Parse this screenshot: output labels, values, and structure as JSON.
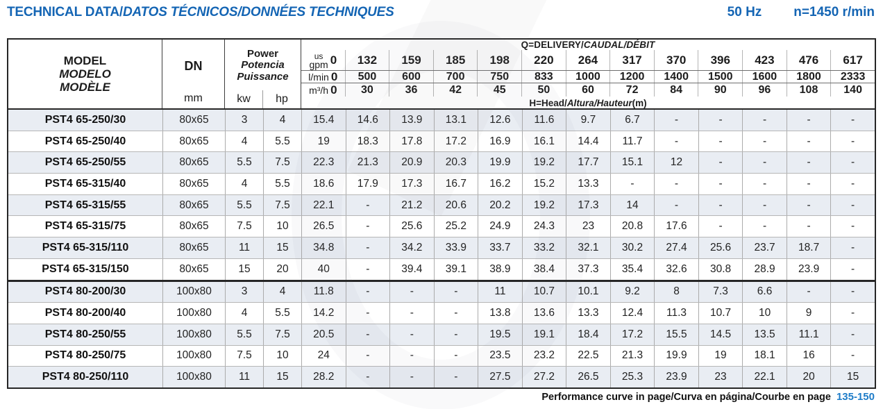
{
  "colors": {
    "accent_blue": "#1465b4",
    "pages_blue": "#1e7cc8",
    "row_shade": "#e9edf3"
  },
  "header": {
    "title_en": "TECHNICAL DATA/",
    "title_intl": "DATOS TÉCNICOS/DONNÉES TECHNIQUES",
    "frequency": "50 Hz",
    "speed": "n=1450 r/min"
  },
  "table": {
    "model_header": [
      "MODEL",
      "MODELO",
      "MODÈLE"
    ],
    "dn_label": "DN",
    "dn_unit": "mm",
    "power_header": [
      "Power",
      "Potencia",
      "Puissance"
    ],
    "power_units": [
      "kw",
      "hp"
    ],
    "q_label_en": "Q=DELIVERY/",
    "q_label_intl": "CAUDAL/DÉBIT",
    "h_label_en": "H=Head/",
    "h_label_intl": "Altura/Hauteur",
    "h_label_unit": "(m)",
    "units": {
      "gpm_top": "us",
      "gpm": "gpm",
      "lmin": "l/min",
      "m3h": "m³/h"
    },
    "gpm": [
      "0",
      "132",
      "159",
      "185",
      "198",
      "220",
      "264",
      "317",
      "370",
      "396",
      "423",
      "476",
      "617"
    ],
    "lmin": [
      "0",
      "500",
      "600",
      "700",
      "750",
      "833",
      "1000",
      "1200",
      "1400",
      "1500",
      "1600",
      "1800",
      "2333"
    ],
    "m3h": [
      "0",
      "30",
      "36",
      "42",
      "45",
      "50",
      "60",
      "72",
      "84",
      "90",
      "96",
      "108",
      "140"
    ],
    "rows": [
      {
        "model": "PST4 65-250/30",
        "dn": "80x65",
        "kw": "3",
        "hp": "4",
        "head": [
          "15.4",
          "14.6",
          "13.9",
          "13.1",
          "12.6",
          "11.6",
          "9.7",
          "6.7",
          "-",
          "-",
          "-",
          "-",
          "-"
        ]
      },
      {
        "model": "PST4 65-250/40",
        "dn": "80x65",
        "kw": "4",
        "hp": "5.5",
        "head": [
          "19",
          "18.3",
          "17.8",
          "17.2",
          "16.9",
          "16.1",
          "14.4",
          "11.7",
          "-",
          "-",
          "-",
          "-",
          "-"
        ]
      },
      {
        "model": "PST4 65-250/55",
        "dn": "80x65",
        "kw": "5.5",
        "hp": "7.5",
        "head": [
          "22.3",
          "21.3",
          "20.9",
          "20.3",
          "19.9",
          "19.2",
          "17.7",
          "15.1",
          "12",
          "-",
          "-",
          "-",
          "-"
        ]
      },
      {
        "model": "PST4 65-315/40",
        "dn": "80x65",
        "kw": "4",
        "hp": "5.5",
        "head": [
          "18.6",
          "17.9",
          "17.3",
          "16.7",
          "16.2",
          "15.2",
          "13.3",
          "-",
          "-",
          "-",
          "-",
          "-",
          "-"
        ]
      },
      {
        "model": "PST4 65-315/55",
        "dn": "80x65",
        "kw": "5.5",
        "hp": "7.5",
        "head": [
          "22.1",
          "-",
          "21.2",
          "20.6",
          "20.2",
          "19.2",
          "17.3",
          "14",
          "-",
          "-",
          "-",
          "-",
          "-"
        ]
      },
      {
        "model": "PST4 65-315/75",
        "dn": "80x65",
        "kw": "7.5",
        "hp": "10",
        "head": [
          "26.5",
          "-",
          "25.6",
          "25.2",
          "24.9",
          "24.3",
          "23",
          "20.8",
          "17.6",
          "-",
          "-",
          "-",
          "-"
        ]
      },
      {
        "model": "PST4 65-315/110",
        "dn": "80x65",
        "kw": "11",
        "hp": "15",
        "head": [
          "34.8",
          "-",
          "34.2",
          "33.9",
          "33.7",
          "33.2",
          "32.1",
          "30.2",
          "27.4",
          "25.6",
          "23.7",
          "18.7",
          "-"
        ]
      },
      {
        "model": "PST4 65-315/150",
        "dn": "80x65",
        "kw": "15",
        "hp": "20",
        "head": [
          "40",
          "-",
          "39.4",
          "39.1",
          "38.9",
          "38.4",
          "37.3",
          "35.4",
          "32.6",
          "30.8",
          "28.9",
          "23.9",
          "-"
        ]
      },
      {
        "model": "PST4 80-200/30",
        "dn": "100x80",
        "kw": "3",
        "hp": "4",
        "group_start": true,
        "head": [
          "11.8",
          "-",
          "-",
          "-",
          "11",
          "10.7",
          "10.1",
          "9.2",
          "8",
          "7.3",
          "6.6",
          "-",
          "-"
        ]
      },
      {
        "model": "PST4 80-200/40",
        "dn": "100x80",
        "kw": "4",
        "hp": "5.5",
        "head": [
          "14.2",
          "-",
          "-",
          "-",
          "13.8",
          "13.6",
          "13.3",
          "12.4",
          "11.3",
          "10.7",
          "10",
          "9",
          "-"
        ]
      },
      {
        "model": "PST4 80-250/55",
        "dn": "100x80",
        "kw": "5.5",
        "hp": "7.5",
        "head": [
          "20.5",
          "-",
          "-",
          "-",
          "19.5",
          "19.1",
          "18.4",
          "17.2",
          "15.5",
          "14.5",
          "13.5",
          "11.1",
          "-"
        ]
      },
      {
        "model": "PST4 80-250/75",
        "dn": "100x80",
        "kw": "7.5",
        "hp": "10",
        "head": [
          "24",
          "-",
          "-",
          "-",
          "23.5",
          "23.2",
          "22.5",
          "21.3",
          "19.9",
          "19",
          "18.1",
          "16",
          "-"
        ]
      },
      {
        "model": "PST4 80-250/110",
        "dn": "100x80",
        "kw": "11",
        "hp": "15",
        "head": [
          "28.2",
          "-",
          "-",
          "-",
          "27.5",
          "27.2",
          "26.5",
          "25.3",
          "23.9",
          "23",
          "22.1",
          "20",
          "15"
        ]
      }
    ]
  },
  "footer": {
    "text_en": "Performance curve in page/",
    "text_intl": "Curva en página/Courbe en page",
    "pages": "135-150"
  }
}
